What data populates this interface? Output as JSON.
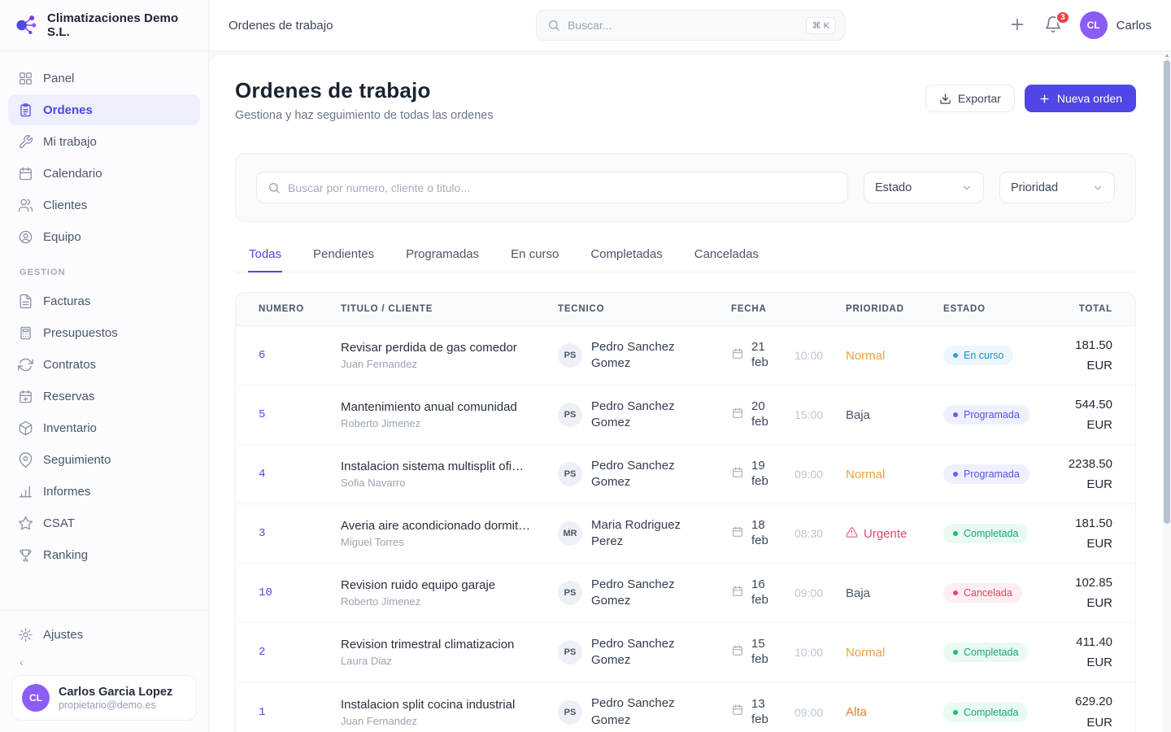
{
  "brand": {
    "name": "Climatizaciones Demo S.L."
  },
  "sidebar": {
    "main_items": [
      {
        "label": "Panel",
        "icon": "grid-icon",
        "active": false
      },
      {
        "label": "Ordenes",
        "icon": "clipboard-icon",
        "active": true
      },
      {
        "label": "Mi trabajo",
        "icon": "wrench-icon",
        "active": false
      },
      {
        "label": "Calendario",
        "icon": "calendar-icon",
        "active": false
      },
      {
        "label": "Clientes",
        "icon": "users-icon",
        "active": false
      },
      {
        "label": "Equipo",
        "icon": "user-circle-icon",
        "active": false
      }
    ],
    "section_label": "GESTION",
    "gestion_items": [
      {
        "label": "Facturas",
        "icon": "file-text-icon",
        "active": false
      },
      {
        "label": "Presupuestos",
        "icon": "calculator-icon",
        "active": false
      },
      {
        "label": "Contratos",
        "icon": "refresh-icon",
        "active": false
      },
      {
        "label": "Reservas",
        "icon": "calendar-plus-icon",
        "active": false
      },
      {
        "label": "Inventario",
        "icon": "package-icon",
        "active": false
      },
      {
        "label": "Seguimiento",
        "icon": "map-pin-icon",
        "active": false
      },
      {
        "label": "Informes",
        "icon": "bar-chart-icon",
        "active": false
      },
      {
        "label": "CSAT",
        "icon": "star-icon",
        "active": false
      },
      {
        "label": "Ranking",
        "icon": "trophy-icon",
        "active": false
      }
    ],
    "settings_label": "Ajustes",
    "user": {
      "initials": "CL",
      "name": "Carlos Garcia Lopez",
      "email": "propietario@demo.es"
    }
  },
  "topbar": {
    "breadcrumb": "Ordenes de trabajo",
    "search_placeholder": "Buscar...",
    "shortcut": "⌘ K",
    "notification_count": "3",
    "user_initials": "CL",
    "user_name": "Carlos"
  },
  "page": {
    "title": "Ordenes de trabajo",
    "subtitle": "Gestiona y haz seguimiento de todas las ordenes",
    "export_label": "Exportar",
    "new_order_label": "Nueva orden"
  },
  "filters": {
    "search_placeholder": "Buscar por numero, cliente o titulo...",
    "estado_label": "Estado",
    "prioridad_label": "Prioridad"
  },
  "tabs": [
    {
      "label": "Todas",
      "active": true
    },
    {
      "label": "Pendientes",
      "active": false
    },
    {
      "label": "Programadas",
      "active": false
    },
    {
      "label": "En curso",
      "active": false
    },
    {
      "label": "Completadas",
      "active": false
    },
    {
      "label": "Canceladas",
      "active": false
    }
  ],
  "table": {
    "columns": [
      "NUMERO",
      "TITULO / CLIENTE",
      "TECNICO",
      "FECHA",
      "PRIORIDAD",
      "ESTADO",
      "TOTAL"
    ],
    "rows": [
      {
        "numero": "6",
        "titulo": "Revisar perdida de gas comedor",
        "cliente": "Juan Fernandez",
        "tecnico_initials": "PS",
        "tecnico": "Pedro Sanchez Gomez",
        "dia": "21",
        "mes": "feb",
        "hora": "10:00",
        "prioridad": "Normal",
        "prioridad_key": "normal",
        "estado": "En curso",
        "estado_key": "encurso",
        "total": "181.50 EUR"
      },
      {
        "numero": "5",
        "titulo": "Mantenimiento anual comunidad",
        "cliente": "Roberto Jimenez",
        "tecnico_initials": "PS",
        "tecnico": "Pedro Sanchez Gomez",
        "dia": "20",
        "mes": "feb",
        "hora": "15:00",
        "prioridad": "Baja",
        "prioridad_key": "baja",
        "estado": "Programada",
        "estado_key": "programada",
        "total": "544.50 EUR"
      },
      {
        "numero": "4",
        "titulo": "Instalacion sistema multisplit ofi…",
        "cliente": "Sofia Navarro",
        "tecnico_initials": "PS",
        "tecnico": "Pedro Sanchez Gomez",
        "dia": "19",
        "mes": "feb",
        "hora": "09:00",
        "prioridad": "Normal",
        "prioridad_key": "normal",
        "estado": "Programada",
        "estado_key": "programada",
        "total": "2238.50 EUR"
      },
      {
        "numero": "3",
        "titulo": "Averia aire acondicionado dormit…",
        "cliente": "Miguel Torres",
        "tecnico_initials": "MR",
        "tecnico": "Maria Rodriguez Perez",
        "dia": "18",
        "mes": "feb",
        "hora": "08:30",
        "prioridad": "Urgente",
        "prioridad_key": "urgente",
        "estado": "Completada",
        "estado_key": "completada",
        "total": "181.50 EUR"
      },
      {
        "numero": "10",
        "titulo": "Revision ruido equipo garaje",
        "cliente": "Roberto Jimenez",
        "tecnico_initials": "PS",
        "tecnico": "Pedro Sanchez Gomez",
        "dia": "16",
        "mes": "feb",
        "hora": "09:00",
        "prioridad": "Baja",
        "prioridad_key": "baja",
        "estado": "Cancelada",
        "estado_key": "cancelada",
        "total": "102.85 EUR"
      },
      {
        "numero": "2",
        "titulo": "Revision trimestral climatizacion",
        "cliente": "Laura Diaz",
        "tecnico_initials": "PS",
        "tecnico": "Pedro Sanchez Gomez",
        "dia": "15",
        "mes": "feb",
        "hora": "10:00",
        "prioridad": "Normal",
        "prioridad_key": "normal",
        "estado": "Completada",
        "estado_key": "completada",
        "total": "411.40 EUR"
      },
      {
        "numero": "1",
        "titulo": "Instalacion split cocina industrial",
        "cliente": "Juan Fernandez",
        "tecnico_initials": "PS",
        "tecnico": "Pedro Sanchez Gomez",
        "dia": "13",
        "mes": "feb",
        "hora": "09:00",
        "prioridad": "Alta",
        "prioridad_key": "alta",
        "estado": "Completada",
        "estado_key": "completada",
        "total": "629.20 EUR"
      }
    ]
  },
  "colors": {
    "accent": "#4f46e5",
    "avatar_purple": "#8b5cf6",
    "notification_red": "#ef4444",
    "priority_normal": "#e9a23b",
    "priority_alta": "#ed7d2b",
    "priority_urgente": "#e8476b",
    "priority_baja": "#4b5667",
    "status_encurso": "#2089c9",
    "status_programada": "#5a50e8",
    "status_completada": "#17a673",
    "status_cancelada": "#e0446a"
  }
}
